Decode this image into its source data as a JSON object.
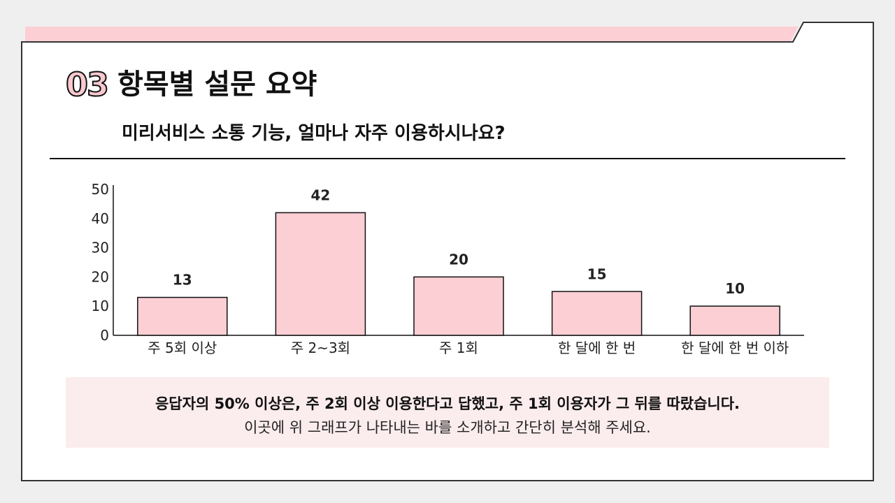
{
  "header": {
    "number": "03",
    "title": "항목별 설문 요약",
    "subtitle": "미리서비스 소통 기능, 얼마나 자주 이용하시나요?"
  },
  "colors": {
    "bar_fill": "#fccfd5",
    "bar_stroke": "#111111",
    "accent_band": "#fccfd5",
    "panel": "#ffffff"
  },
  "chart_data": {
    "type": "bar",
    "categories": [
      "주 5회 이상",
      "주 2~3회",
      "주 1회",
      "한 달에 한 번",
      "한 달에 한 번 이하"
    ],
    "values": [
      13,
      42,
      20,
      15,
      10
    ],
    "ylim": [
      0,
      50
    ],
    "yticks": [
      0,
      10,
      20,
      30,
      40,
      50
    ],
    "grid": false,
    "data_labels": true
  },
  "summary": {
    "main": "응답자의 50% 이상은, 주 2회 이상 이용한다고 답했고, 주 1회 이용자가 그 뒤를 따랐습니다.",
    "sub": "이곳에 위 그래프가 나타내는 바를 소개하고 간단히 분석해 주세요."
  }
}
